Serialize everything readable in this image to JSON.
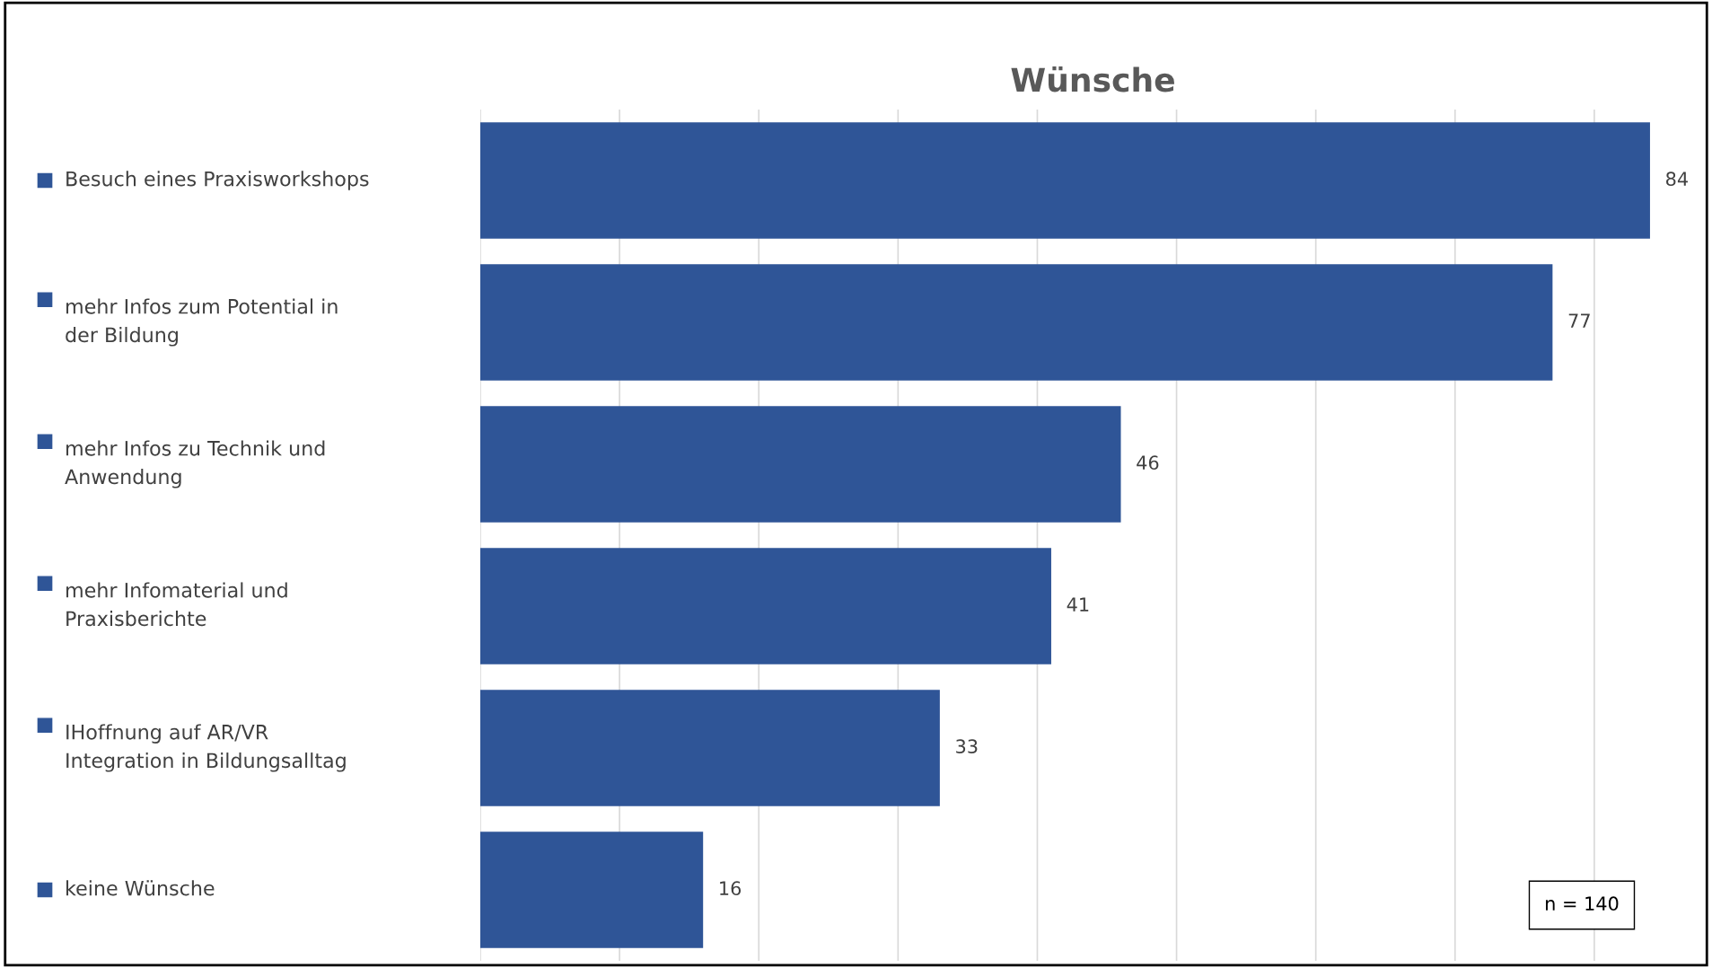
{
  "chart_data": {
    "type": "bar",
    "orientation": "horizontal",
    "title": "Wünsche",
    "categories": [
      "Besuch eines Praxisworkshops",
      "mehr Infos zum Potential in\nder Bildung",
      "mehr Infos zu Technik und\nAnwendung",
      "mehr Infomaterial und\nPraxisberichte",
      "IHoffnung auf AR/VR\nIntegration in Bildungsalltag",
      "keine Wünsche"
    ],
    "values": [
      84,
      77,
      46,
      41,
      33,
      16
    ],
    "color": "#2f5597",
    "data_labels": true,
    "xlim": [
      0,
      88
    ],
    "xticks": [
      {
        "value": 0,
        "label": null
      },
      {
        "value": 10,
        "label": null
      },
      {
        "value": 20,
        "label": null
      },
      {
        "value": 30,
        "label": null
      },
      {
        "value": 40,
        "label": null
      },
      {
        "value": 50,
        "label": null
      },
      {
        "value": 60,
        "label": null
      },
      {
        "value": 70,
        "label": null
      },
      {
        "value": 80,
        "label": null
      }
    ],
    "grid": "x",
    "annotations": [
      "n = 140"
    ]
  }
}
